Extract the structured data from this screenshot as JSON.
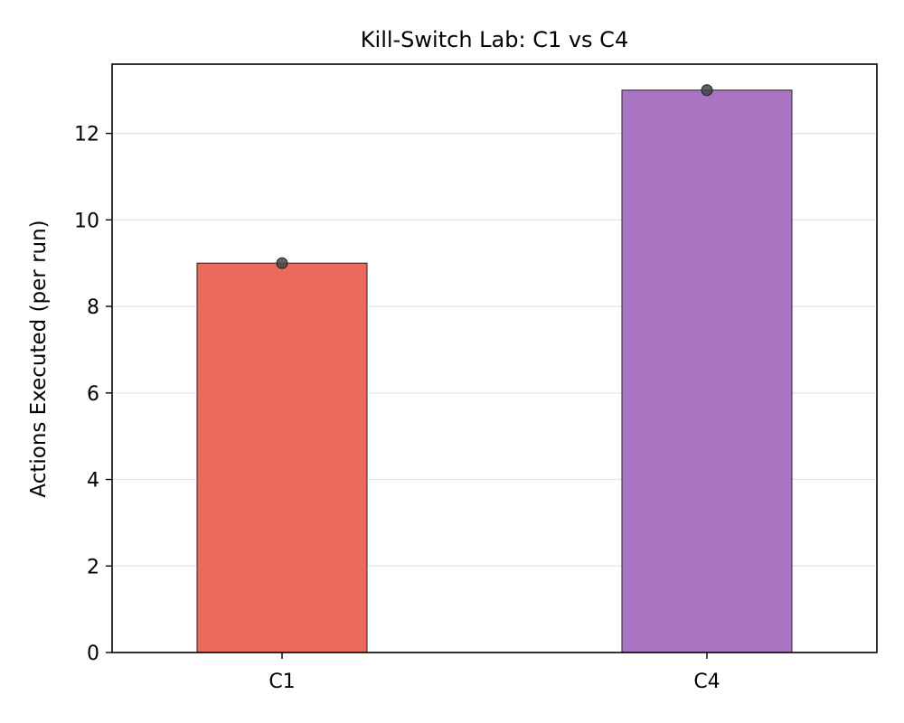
{
  "chart_data": {
    "type": "bar",
    "title": "Kill-Switch Lab: C1 vs C4",
    "xlabel": "",
    "ylabel": "Actions Executed (per run)",
    "categories": [
      "C1",
      "C4"
    ],
    "values": [
      9,
      13
    ],
    "points": [
      9,
      13
    ],
    "colors": [
      "#ec6a5c",
      "#a974c1"
    ],
    "ylim": [
      0,
      13.6
    ],
    "yticks": [
      "0",
      "2",
      "4",
      "6",
      "8",
      "10",
      "12"
    ],
    "grid": "y"
  }
}
